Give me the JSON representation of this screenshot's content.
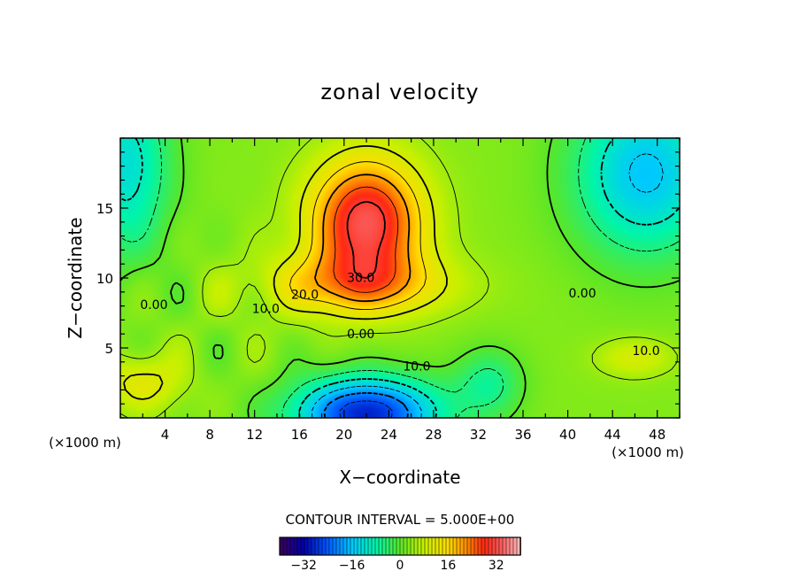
{
  "chart_data": {
    "type": "heatmap",
    "title": "zonal velocity",
    "xlabel": "X−coordinate",
    "ylabel": "Z−coordinate",
    "x_unit_left": "(×1000 m)",
    "x_unit_right": "(×1000 m)",
    "xlim": [
      0,
      50
    ],
    "ylim": [
      0,
      20
    ],
    "x_ticks": [
      4,
      8,
      12,
      16,
      20,
      24,
      28,
      32,
      36,
      40,
      44,
      48
    ],
    "y_ticks": [
      5,
      10,
      15
    ],
    "contour_labels": [
      {
        "text": "30.0",
        "x": 21.5,
        "y": 9.7
      },
      {
        "text": "20.0",
        "x": 16.5,
        "y": 8.5
      },
      {
        "text": "10.0",
        "x": 13.0,
        "y": 7.5
      },
      {
        "text": "0.00",
        "x": 3.0,
        "y": 7.8
      },
      {
        "text": "0.00",
        "x": 21.5,
        "y": 5.7
      },
      {
        "text": "10.0",
        "x": 26.5,
        "y": 3.4
      },
      {
        "text": "0.00",
        "x": 41.3,
        "y": 8.6
      },
      {
        "text": "10.0",
        "x": 47.0,
        "y": 4.5
      }
    ],
    "features": [
      {
        "name": "jet maximum",
        "x": 22,
        "y": 13,
        "value": 32
      },
      {
        "name": "lower minimum",
        "x": 22,
        "y": 1,
        "value": -30
      },
      {
        "name": "upper-right minimum",
        "x": 46,
        "y": 18,
        "value": -18
      },
      {
        "name": "upper-left minimum",
        "x": 1,
        "y": 18,
        "value": -14
      }
    ],
    "contour_interval_text": "CONTOUR INTERVAL = 5.000E+00",
    "colorbar": {
      "min": -40,
      "max": 40,
      "ticks": [
        -32,
        -16,
        0,
        16,
        32
      ]
    },
    "grid": false
  }
}
